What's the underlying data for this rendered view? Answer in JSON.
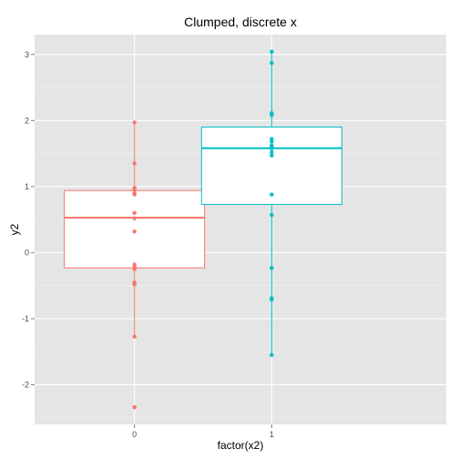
{
  "chart_data": {
    "type": "boxplot",
    "title": "Clumped, discrete x",
    "xlabel": "factor(x2)",
    "ylabel": "y2",
    "categories": [
      "0",
      "1"
    ],
    "ylim": [
      -2.6,
      3.3
    ],
    "y_ticks": [
      -2,
      -1,
      0,
      1,
      2,
      3
    ],
    "grid": true,
    "panel_background": "#e5e5e5",
    "groups": [
      {
        "category": "0",
        "color": "#F8766D",
        "box": {
          "whisker_low": -1.27,
          "q1": -0.23,
          "median": 0.53,
          "q3": 0.94,
          "whisker_high": 1.97
        },
        "outliers": [
          -2.34
        ],
        "points": [
          1.97,
          1.35,
          0.98,
          0.95,
          0.9,
          0.88,
          0.6,
          0.52,
          0.32,
          -0.18,
          -0.22,
          -0.25,
          -0.45,
          -0.48,
          -1.27,
          -2.34
        ]
      },
      {
        "category": "1",
        "color": "#00BFC4",
        "box": {
          "whisker_low": -1.55,
          "q1": 0.73,
          "median": 1.58,
          "q3": 1.9,
          "whisker_high": 3.04
        },
        "outliers": [],
        "points": [
          3.04,
          2.87,
          2.11,
          2.08,
          1.72,
          1.68,
          1.62,
          1.6,
          1.58,
          1.52,
          1.47,
          0.88,
          0.57,
          -0.23,
          -0.69,
          -0.71,
          -1.55
        ]
      }
    ]
  }
}
